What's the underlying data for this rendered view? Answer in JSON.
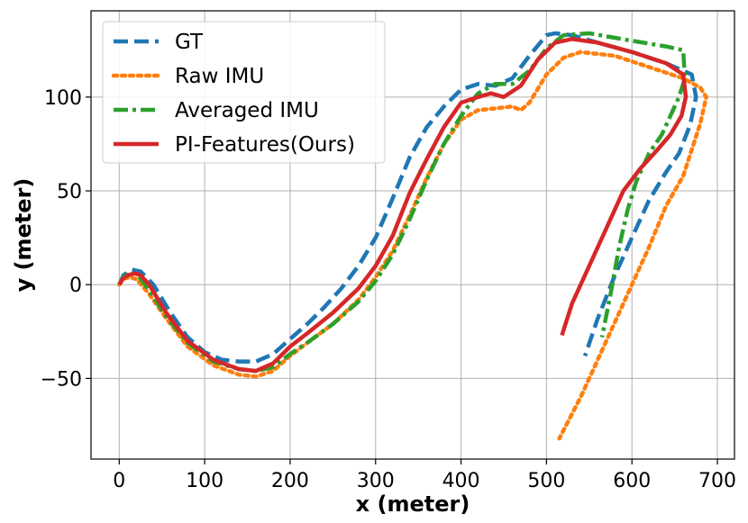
{
  "chart_data": {
    "type": "line",
    "title": "",
    "xlabel": "x (meter)",
    "ylabel": "y (meter)",
    "xlim": [
      -33,
      720
    ],
    "ylim": [
      -93,
      146
    ],
    "xticks": [
      0,
      100,
      200,
      300,
      400,
      500,
      600,
      700
    ],
    "yticks": [
      -50,
      0,
      50,
      100
    ],
    "xtick_labels": [
      "0",
      "100",
      "200",
      "300",
      "400",
      "500",
      "600",
      "700"
    ],
    "ytick_labels": [
      "−50",
      "0",
      "50",
      "100"
    ],
    "grid": true,
    "legend_position": "top-left",
    "series": [
      {
        "name": "GT",
        "color": "#1f77b4",
        "style": "dashed",
        "x": [
          0,
          5,
          15,
          25,
          40,
          60,
          80,
          100,
          120,
          140,
          160,
          180,
          200,
          220,
          240,
          260,
          280,
          300,
          320,
          340,
          360,
          380,
          400,
          420,
          440,
          460,
          480,
          500,
          510,
          530,
          560,
          600,
          640,
          670,
          675,
          668,
          655,
          640,
          620,
          600,
          580,
          560,
          545
        ],
        "y": [
          0,
          5,
          8,
          7,
          0,
          -15,
          -28,
          -36,
          -40,
          -41,
          -41,
          -37,
          -29,
          -21,
          -12,
          -2,
          10,
          25,
          46,
          68,
          84,
          95,
          104,
          107,
          106,
          110,
          122,
          133,
          134,
          133,
          129,
          124,
          118,
          112,
          100,
          85,
          70,
          60,
          45,
          25,
          5,
          -18,
          -38
        ]
      },
      {
        "name": "Raw IMU",
        "color": "#ff7f0e",
        "style": "dotted",
        "x": [
          0,
          5,
          12,
          20,
          35,
          55,
          80,
          110,
          140,
          160,
          180,
          200,
          220,
          250,
          280,
          300,
          320,
          340,
          360,
          380,
          400,
          420,
          440,
          460,
          470,
          480,
          500,
          520,
          540,
          580,
          620,
          660,
          680,
          687,
          680,
          670,
          660,
          640,
          620,
          600,
          580,
          560,
          540,
          515
        ],
        "y": [
          0,
          3,
          4,
          3,
          -5,
          -18,
          -33,
          -43,
          -48,
          -49,
          -46,
          -38,
          -31,
          -21,
          -8,
          4,
          18,
          37,
          57,
          75,
          88,
          93,
          94,
          95,
          93,
          97,
          112,
          121,
          124,
          122,
          116,
          110,
          105,
          100,
          86,
          72,
          58,
          42,
          20,
          0,
          -20,
          -40,
          -60,
          -82
        ]
      },
      {
        "name": "Averaged IMU",
        "color": "#2ca02c",
        "style": "dashdot",
        "x": [
          0,
          5,
          12,
          20,
          35,
          55,
          80,
          110,
          140,
          160,
          180,
          200,
          220,
          250,
          280,
          300,
          320,
          340,
          360,
          380,
          400,
          420,
          440,
          460,
          480,
          500,
          520,
          550,
          600,
          640,
          660,
          662,
          655,
          645,
          635,
          620,
          605,
          595,
          585,
          575,
          565
        ],
        "y": [
          0,
          4,
          6,
          6,
          -3,
          -17,
          -31,
          -41,
          -45,
          -46,
          -44,
          -37,
          -31,
          -21,
          -9,
          2,
          16,
          35,
          56,
          75,
          90,
          102,
          107,
          107,
          114,
          126,
          133,
          134,
          130,
          127,
          125,
          110,
          100,
          90,
          80,
          70,
          55,
          40,
          20,
          -5,
          -28
        ]
      },
      {
        "name": "PI-Features(Ours)",
        "color": "#d62728",
        "style": "solid",
        "x": [
          0,
          4,
          10,
          18,
          25,
          35,
          55,
          80,
          110,
          140,
          160,
          180,
          200,
          220,
          250,
          280,
          300,
          320,
          340,
          360,
          380,
          400,
          420,
          435,
          450,
          470,
          490,
          510,
          530,
          560,
          600,
          640,
          660,
          663,
          658,
          645,
          630,
          610,
          590,
          570,
          550,
          530,
          518
        ],
        "y": [
          0,
          3,
          5,
          6,
          5,
          0,
          -15,
          -30,
          -40,
          -45,
          -46,
          -42,
          -33,
          -26,
          -15,
          -2,
          10,
          26,
          49,
          67,
          84,
          97,
          100,
          102,
          100,
          106,
          120,
          129,
          131,
          129,
          124,
          118,
          112,
          100,
          90,
          80,
          72,
          62,
          50,
          30,
          10,
          -10,
          -27
        ]
      }
    ]
  }
}
